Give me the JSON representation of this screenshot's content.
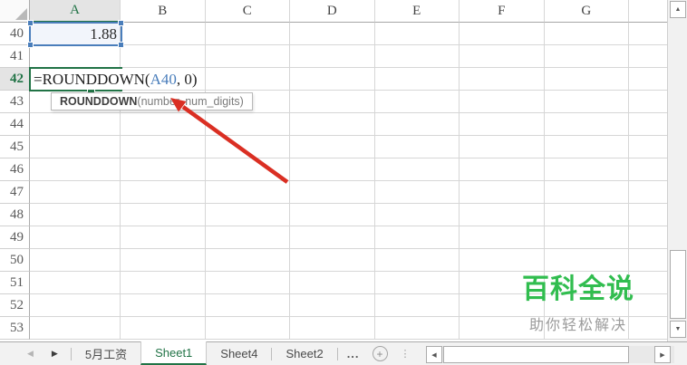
{
  "colors": {
    "accent": "#217346",
    "ref-blue": "#4a7ebb",
    "arrow-red": "#da2f23",
    "watermark-green": "#31bd4f"
  },
  "grid": {
    "columns": [
      "A",
      "B",
      "C",
      "D",
      "E",
      "F",
      "G"
    ],
    "rows": [
      "40",
      "41",
      "42",
      "43",
      "44",
      "45",
      "46",
      "47",
      "48",
      "49",
      "50",
      "51",
      "52",
      "53"
    ],
    "selected_column": "A",
    "selected_row": "42",
    "referenced_cell": {
      "address": "A40",
      "value": "1.88"
    },
    "active_cell": {
      "address": "A42"
    }
  },
  "formula": {
    "prefix": "=ROUNDDOWN(",
    "reference": "A40",
    "suffix": ", 0)"
  },
  "tooltip": {
    "function_name": "ROUNDDOWN",
    "signature": "(number, num_digits)"
  },
  "watermark": {
    "title": "百科全说",
    "subtitle": "助你轻松解决"
  },
  "tab_bar": {
    "nav_prev": "◀",
    "nav_next": "▶",
    "tabs": [
      {
        "label": "5月工资",
        "active": false
      },
      {
        "label": "Sheet1",
        "active": true
      },
      {
        "label": "Sheet4",
        "active": false
      },
      {
        "label": "Sheet2",
        "active": false
      }
    ],
    "more_label": "...",
    "add_sheet_label": "+"
  }
}
